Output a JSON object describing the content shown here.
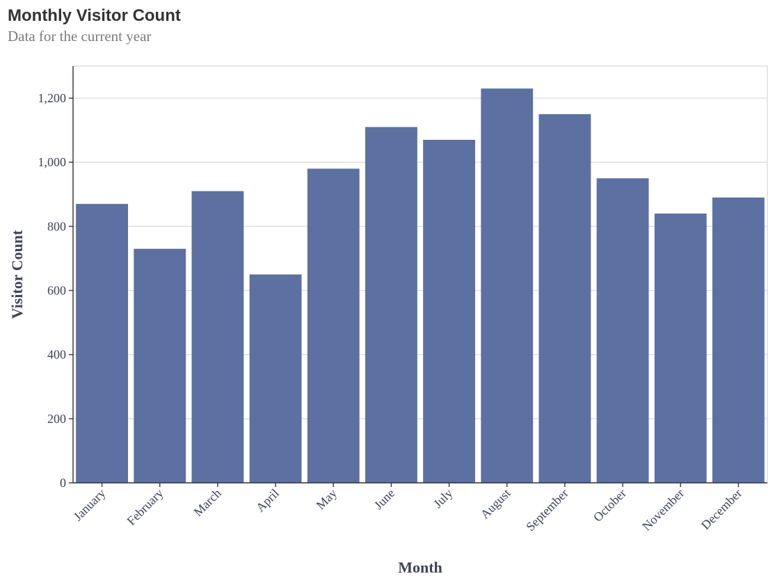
{
  "chart_data": {
    "type": "bar",
    "title": "Monthly Visitor Count",
    "subtitle": "Data for the current year",
    "xlabel": "Month",
    "ylabel": "Visitor Count",
    "categories": [
      "January",
      "February",
      "March",
      "April",
      "May",
      "June",
      "July",
      "August",
      "September",
      "October",
      "November",
      "December"
    ],
    "values": [
      870,
      730,
      910,
      650,
      980,
      1110,
      1070,
      1230,
      1150,
      950,
      840,
      890
    ],
    "ylim": [
      0,
      1300
    ],
    "yticks": [
      0,
      200,
      400,
      600,
      800,
      1000,
      1200
    ],
    "ytick_labels": [
      "0",
      "200",
      "400",
      "600",
      "800",
      "1,000",
      "1,200"
    ],
    "grid": true,
    "bar_color": "#5d70a2"
  }
}
